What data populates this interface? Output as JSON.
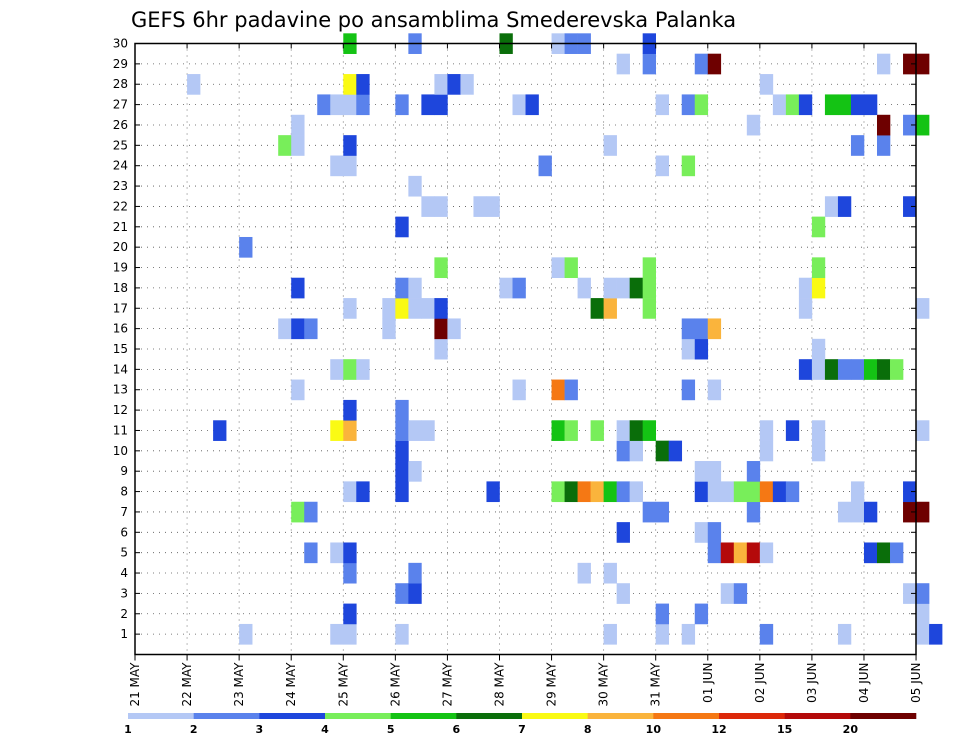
{
  "chart_data": {
    "type": "heatmap",
    "title": "GEFS 6hr padavine po ansamblima Smederevska Palanka",
    "xlabel": "",
    "ylabel": "",
    "x_ticks": [
      "21 MAY",
      "22 MAY",
      "23 MAY",
      "24 MAY",
      "25 MAY",
      "26 MAY",
      "27 MAY",
      "28 MAY",
      "29 MAY",
      "30 MAY",
      "31 MAY",
      "01 JUN",
      "02 JUN",
      "03 JUN",
      "04 JUN",
      "05 JUN"
    ],
    "x_range": [
      "21 MAY 00h",
      "05 JUN 12h"
    ],
    "time_step": "6hr",
    "y_ticks": [
      1,
      2,
      3,
      4,
      5,
      6,
      7,
      8,
      9,
      10,
      11,
      12,
      13,
      14,
      15,
      16,
      17,
      18,
      19,
      20,
      21,
      22,
      23,
      24,
      25,
      26,
      27,
      28,
      29,
      30
    ],
    "y_range": [
      0,
      30
    ],
    "grid": true,
    "legend": {
      "placement": "bottom",
      "levels": [
        "1",
        "2",
        "3",
        "4",
        "5",
        "6",
        "7",
        "8",
        "10",
        "12",
        "15",
        "20"
      ],
      "colors": [
        "#b4c8f5",
        "#5a82ec",
        "#1e46dc",
        "#78ee5a",
        "#14c314",
        "#0a6e0a",
        "#fafa14",
        "#fab43c",
        "#f57814",
        "#dc280a",
        "#b40a0a",
        "#6e0000"
      ]
    },
    "bin_colors": [
      "#b4c8f5",
      "#5a82ec",
      "#1e46dc",
      "#78ee5a",
      "#14c314",
      "#0a6e0a",
      "#fafa14",
      "#fab43c",
      "#f57814",
      "#dc280a",
      "#b40a0a",
      "#6e0000"
    ],
    "cells": [
      {
        "m": 1,
        "s": [
          [
            8,
            1
          ],
          [
            15,
            1
          ],
          [
            16,
            1
          ],
          [
            20,
            1
          ],
          [
            36,
            1
          ],
          [
            40,
            1
          ],
          [
            42,
            1
          ],
          [
            48,
            2
          ],
          [
            54,
            1
          ],
          [
            60,
            1
          ],
          [
            61,
            3
          ]
        ]
      },
      {
        "m": 2,
        "s": [
          [
            16,
            3
          ],
          [
            40,
            2
          ],
          [
            43,
            2
          ],
          [
            60,
            1
          ]
        ]
      },
      {
        "m": 3,
        "s": [
          [
            20,
            2
          ],
          [
            21,
            3
          ],
          [
            37,
            1
          ],
          [
            45,
            1
          ],
          [
            46,
            2
          ],
          [
            59,
            1
          ],
          [
            60,
            2
          ]
        ]
      },
      {
        "m": 4,
        "s": [
          [
            16,
            2
          ],
          [
            21,
            2
          ],
          [
            34,
            1
          ],
          [
            36,
            1
          ]
        ]
      },
      {
        "m": 5,
        "s": [
          [
            13,
            2
          ],
          [
            15,
            1
          ],
          [
            16,
            3
          ],
          [
            44,
            2
          ],
          [
            45,
            11
          ],
          [
            46,
            8
          ],
          [
            47,
            11
          ],
          [
            48,
            1
          ],
          [
            56,
            3
          ],
          [
            57,
            6
          ],
          [
            58,
            2
          ]
        ]
      },
      {
        "m": 6,
        "s": [
          [
            37,
            3
          ],
          [
            43,
            1
          ],
          [
            44,
            2
          ]
        ]
      },
      {
        "m": 7,
        "s": [
          [
            12,
            4
          ],
          [
            13,
            2
          ],
          [
            39,
            2
          ],
          [
            40,
            2
          ],
          [
            47,
            2
          ],
          [
            54,
            1
          ],
          [
            55,
            1
          ],
          [
            56,
            3
          ],
          [
            59,
            12
          ],
          [
            60,
            12
          ]
        ]
      },
      {
        "m": 8,
        "s": [
          [
            16,
            1
          ],
          [
            17,
            3
          ],
          [
            20,
            3
          ],
          [
            27,
            3
          ],
          [
            32,
            4
          ],
          [
            33,
            6
          ],
          [
            34,
            9
          ],
          [
            35,
            8
          ],
          [
            36,
            5
          ],
          [
            37,
            2
          ],
          [
            38,
            1
          ],
          [
            43,
            3
          ],
          [
            44,
            1
          ],
          [
            45,
            1
          ],
          [
            46,
            4
          ],
          [
            47,
            4
          ],
          [
            48,
            9
          ],
          [
            49,
            3
          ],
          [
            50,
            2
          ],
          [
            55,
            1
          ],
          [
            59,
            3
          ]
        ]
      },
      {
        "m": 9,
        "s": [
          [
            20,
            3
          ],
          [
            21,
            1
          ],
          [
            43,
            1
          ],
          [
            44,
            1
          ],
          [
            47,
            2
          ]
        ]
      },
      {
        "m": 10,
        "s": [
          [
            20,
            3
          ],
          [
            37,
            2
          ],
          [
            38,
            1
          ],
          [
            40,
            6
          ],
          [
            41,
            3
          ],
          [
            48,
            1
          ],
          [
            52,
            1
          ]
        ]
      },
      {
        "m": 11,
        "s": [
          [
            6,
            3
          ],
          [
            15,
            7
          ],
          [
            16,
            8
          ],
          [
            20,
            2
          ],
          [
            21,
            1
          ],
          [
            22,
            1
          ],
          [
            32,
            5
          ],
          [
            33,
            4
          ],
          [
            35,
            4
          ],
          [
            37,
            1
          ],
          [
            38,
            6
          ],
          [
            39,
            5
          ],
          [
            48,
            1
          ],
          [
            50,
            3
          ],
          [
            52,
            1
          ],
          [
            60,
            1
          ]
        ]
      },
      {
        "m": 12,
        "s": [
          [
            16,
            3
          ],
          [
            20,
            2
          ]
        ]
      },
      {
        "m": 13,
        "s": [
          [
            12,
            1
          ],
          [
            29,
            1
          ],
          [
            32,
            9
          ],
          [
            33,
            2
          ],
          [
            42,
            2
          ],
          [
            44,
            1
          ]
        ]
      },
      {
        "m": 14,
        "s": [
          [
            15,
            1
          ],
          [
            16,
            4
          ],
          [
            17,
            1
          ],
          [
            51,
            3
          ],
          [
            52,
            1
          ],
          [
            53,
            6
          ],
          [
            54,
            2
          ],
          [
            55,
            2
          ],
          [
            56,
            5
          ],
          [
            57,
            6
          ],
          [
            58,
            4
          ]
        ]
      },
      {
        "m": 15,
        "s": [
          [
            23,
            1
          ],
          [
            42,
            1
          ],
          [
            43,
            3
          ],
          [
            52,
            1
          ]
        ]
      },
      {
        "m": 16,
        "s": [
          [
            11,
            1
          ],
          [
            12,
            3
          ],
          [
            13,
            2
          ],
          [
            19,
            1
          ],
          [
            23,
            12
          ],
          [
            24,
            1
          ],
          [
            42,
            2
          ],
          [
            43,
            2
          ],
          [
            44,
            8
          ]
        ]
      },
      {
        "m": 17,
        "s": [
          [
            16,
            1
          ],
          [
            19,
            1
          ],
          [
            20,
            7
          ],
          [
            21,
            1
          ],
          [
            22,
            1
          ],
          [
            23,
            3
          ],
          [
            35,
            6
          ],
          [
            36,
            8
          ],
          [
            39,
            4
          ],
          [
            51,
            1
          ],
          [
            60,
            1
          ]
        ]
      },
      {
        "m": 18,
        "s": [
          [
            12,
            3
          ],
          [
            20,
            2
          ],
          [
            21,
            1
          ],
          [
            28,
            1
          ],
          [
            29,
            2
          ],
          [
            34,
            1
          ],
          [
            36,
            1
          ],
          [
            37,
            1
          ],
          [
            38,
            6
          ],
          [
            39,
            4
          ],
          [
            51,
            1
          ],
          [
            52,
            7
          ]
        ]
      },
      {
        "m": 19,
        "s": [
          [
            23,
            4
          ],
          [
            32,
            1
          ],
          [
            33,
            4
          ],
          [
            39,
            4
          ],
          [
            52,
            4
          ]
        ]
      },
      {
        "m": 20,
        "s": [
          [
            8,
            2
          ]
        ]
      },
      {
        "m": 21,
        "s": [
          [
            20,
            3
          ],
          [
            52,
            4
          ]
        ]
      },
      {
        "m": 22,
        "s": [
          [
            22,
            1
          ],
          [
            23,
            1
          ],
          [
            26,
            1
          ],
          [
            27,
            1
          ],
          [
            53,
            1
          ],
          [
            54,
            3
          ],
          [
            59,
            3
          ]
        ]
      },
      {
        "m": 23,
        "s": [
          [
            21,
            1
          ]
        ]
      },
      {
        "m": 24,
        "s": [
          [
            15,
            1
          ],
          [
            16,
            1
          ],
          [
            31,
            2
          ],
          [
            40,
            1
          ],
          [
            42,
            4
          ]
        ]
      },
      {
        "m": 25,
        "s": [
          [
            11,
            4
          ],
          [
            12,
            1
          ],
          [
            16,
            3
          ],
          [
            36,
            1
          ],
          [
            55,
            2
          ],
          [
            57,
            2
          ]
        ]
      },
      {
        "m": 26,
        "s": [
          [
            12,
            1
          ],
          [
            47,
            1
          ],
          [
            57,
            12
          ],
          [
            59,
            2
          ],
          [
            60,
            5
          ]
        ]
      },
      {
        "m": 27,
        "s": [
          [
            14,
            2
          ],
          [
            15,
            1
          ],
          [
            16,
            1
          ],
          [
            17,
            2
          ],
          [
            20,
            2
          ],
          [
            22,
            3
          ],
          [
            23,
            3
          ],
          [
            29,
            1
          ],
          [
            30,
            3
          ],
          [
            40,
            1
          ],
          [
            42,
            2
          ],
          [
            43,
            4
          ],
          [
            49,
            1
          ],
          [
            50,
            4
          ],
          [
            51,
            3
          ],
          [
            53,
            5
          ],
          [
            54,
            5
          ],
          [
            55,
            3
          ],
          [
            56,
            3
          ]
        ]
      },
      {
        "m": 28,
        "s": [
          [
            4,
            1
          ],
          [
            16,
            7
          ],
          [
            17,
            3
          ],
          [
            23,
            1
          ],
          [
            24,
            3
          ],
          [
            25,
            1
          ],
          [
            48,
            1
          ]
        ]
      },
      {
        "m": 29,
        "s": [
          [
            37,
            1
          ],
          [
            39,
            2
          ],
          [
            43,
            2
          ],
          [
            44,
            12
          ],
          [
            57,
            1
          ],
          [
            59,
            12
          ],
          [
            60,
            12
          ]
        ]
      },
      {
        "m": 30,
        "s": [
          [
            16,
            5
          ],
          [
            21,
            2
          ],
          [
            28,
            6
          ],
          [
            32,
            1
          ],
          [
            33,
            2
          ],
          [
            34,
            2
          ],
          [
            39,
            3
          ]
        ]
      }
    ]
  }
}
